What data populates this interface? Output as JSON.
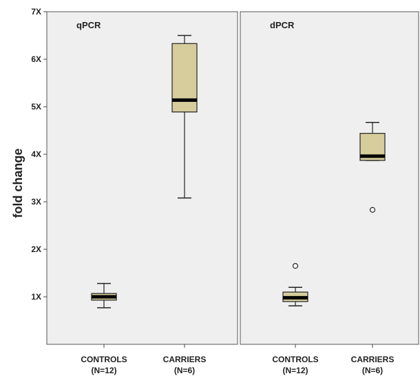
{
  "chart_data": {
    "type": "boxplot",
    "ylabel": "fold change",
    "ylim": [
      0,
      7
    ],
    "yticks": [
      {
        "value": 1,
        "label": "1X"
      },
      {
        "value": 2,
        "label": "2X"
      },
      {
        "value": 3,
        "label": "3X"
      },
      {
        "value": 4,
        "label": "4X"
      },
      {
        "value": 5,
        "label": "5X"
      },
      {
        "value": 6,
        "label": "6X"
      },
      {
        "value": 7,
        "label": "7X"
      }
    ],
    "box_color": "#d6cc9c",
    "panel_background": "#efefef",
    "panels": [
      {
        "title": "qPCR",
        "categories": [
          {
            "name": "CONTROLS",
            "n": "(N=12)",
            "min": 0.77,
            "q1": 0.93,
            "median": 1.0,
            "q3": 1.07,
            "max": 1.28,
            "outliers": []
          },
          {
            "name": "CARRIERS",
            "n": "(N=6)",
            "min": 3.08,
            "q1": 4.89,
            "median": 5.14,
            "q3": 6.33,
            "max": 6.5,
            "outliers": []
          }
        ]
      },
      {
        "title": "dPCR",
        "categories": [
          {
            "name": "CONTROLS",
            "n": "(N=12)",
            "min": 0.81,
            "q1": 0.9,
            "median": 0.98,
            "q3": 1.1,
            "max": 1.2,
            "outliers": [
              1.65
            ]
          },
          {
            "name": "CARRIERS",
            "n": "(N=6)",
            "min": 3.87,
            "q1": 3.87,
            "median": 3.96,
            "q3": 4.44,
            "max": 4.67,
            "outliers": [
              2.83
            ]
          }
        ]
      }
    ]
  }
}
